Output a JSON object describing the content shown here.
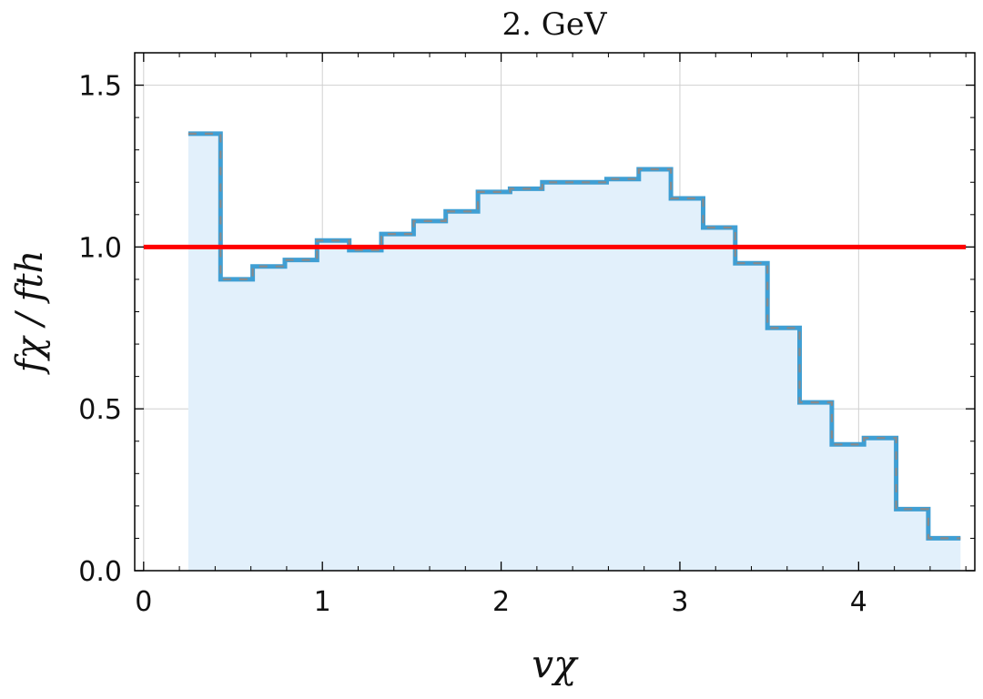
{
  "chart_data": {
    "type": "line",
    "title": "2. GeV",
    "xlabel": "vχ",
    "ylabel": "fχ / fth",
    "xlim": [
      -0.05,
      4.65
    ],
    "ylim": [
      0.0,
      1.6
    ],
    "xticks": [
      0,
      1,
      2,
      3,
      4
    ],
    "xtick_labels": [
      "0",
      "1",
      "2",
      "3",
      "4"
    ],
    "yticks": [
      0.0,
      0.5,
      1.0,
      1.5
    ],
    "ytick_labels": [
      "0.0",
      "0.5",
      "1.0",
      "1.5"
    ],
    "grid": true,
    "log_scale": false,
    "bin_edges": [
      0.25,
      0.43,
      0.61,
      0.79,
      0.97,
      1.15,
      1.33,
      1.51,
      1.69,
      1.87,
      2.05,
      2.23,
      2.41,
      2.59,
      2.77,
      2.95,
      3.13,
      3.31,
      3.49,
      3.67,
      3.85,
      4.03,
      4.21,
      4.39,
      4.57
    ],
    "series": [
      {
        "type": "step-histogram",
        "values": [
          1.35,
          0.9,
          0.94,
          0.96,
          1.02,
          0.99,
          1.04,
          1.08,
          1.11,
          1.17,
          1.18,
          1.2,
          1.2,
          1.21,
          1.24,
          1.15,
          1.06,
          0.95,
          0.75,
          0.52,
          0.39,
          0.41,
          0.19,
          0.1
        ],
        "color": "#3f9fd4",
        "dash_color": "#8a8a8a",
        "fill_color": "#e2f0fb"
      },
      {
        "type": "reference-line",
        "y": 1.0,
        "x_range": [
          0.0,
          4.6
        ],
        "color": "#ff0000"
      }
    ]
  }
}
